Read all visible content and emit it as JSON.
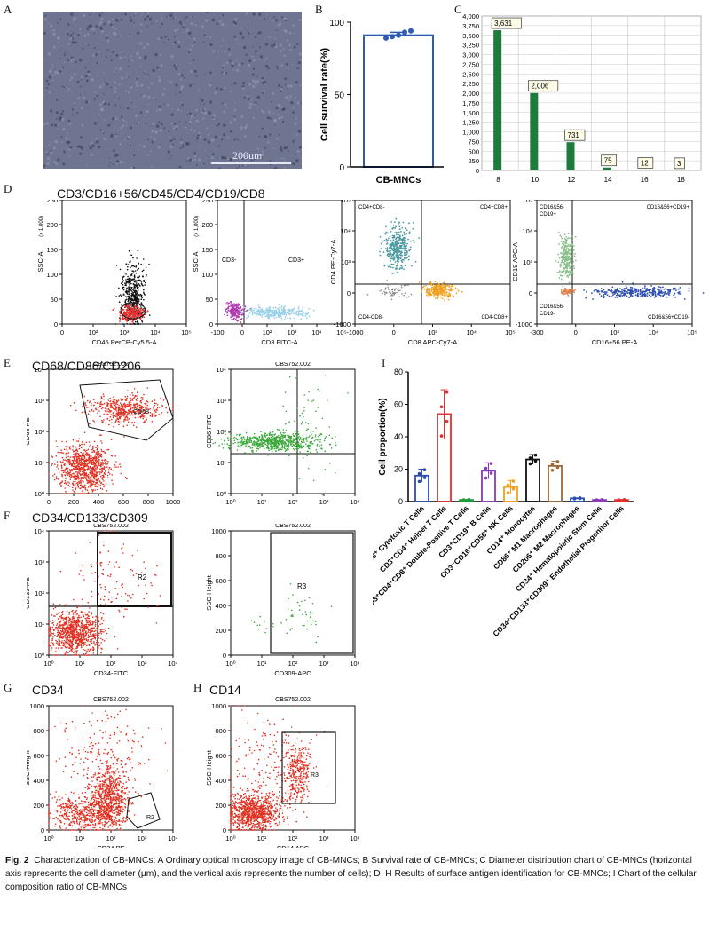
{
  "panel_letters": {
    "A": "A",
    "B": "B",
    "C": "C",
    "D": "D",
    "E": "E",
    "F": "F",
    "G": "G",
    "H": "H",
    "I": "I"
  },
  "panel_titles": {
    "D": "CD3/CD16+56/CD45/CD4/CD19/CD8",
    "E": "CD68/CD86/CD206",
    "F": "CD34/CD133/CD309",
    "G": "CD34",
    "H": "CD14"
  },
  "micro": {
    "scalebar": "200um",
    "color": "#6f7590"
  },
  "sample_id": "CBS752.002",
  "chart_data": [
    {
      "panel": "B",
      "type": "bar",
      "categories": [
        "CB-MNCs"
      ],
      "values": [
        91
      ],
      "error": [
        2
      ],
      "points": [
        89,
        90,
        91,
        93,
        94
      ],
      "ylabel": "Cell survival rate(%)",
      "ylim": [
        0,
        100
      ],
      "yticks": [
        0,
        50,
        100
      ],
      "color": "#2f5bb5"
    },
    {
      "panel": "C",
      "type": "bar",
      "categories": [
        8,
        10,
        12,
        14,
        16,
        18
      ],
      "values": [
        3631,
        2006,
        731,
        75,
        12,
        3
      ],
      "labels": [
        "3,631",
        "2,006",
        "731",
        "75",
        "12",
        "3"
      ],
      "ylim": [
        0,
        4000
      ],
      "yticks": [
        "0",
        "250",
        "500",
        "750",
        "1,000",
        "1,250",
        "1,500",
        "1,750",
        "2,000",
        "2,250",
        "2,500",
        "2,750",
        "3,000",
        "3,250",
        "3,500",
        "3,750",
        "4,000"
      ],
      "grid": true,
      "color": "#1e7b3c"
    },
    {
      "panel": "I",
      "type": "bar",
      "categories": [
        "CD3⁺CD8⁺ Cytotoxic T Cells",
        "CD3⁺CD4⁺ Helper T Cells",
        "CD3⁺CD4⁺CD8⁺ Double-Positive T Cells",
        "CD3⁺CD19⁺ B Cells",
        "CD3⁻CD16⁺CD56⁺ NK Cells",
        "CD14⁺ Monocytes",
        "CD86⁺ M1 Macrophages",
        "CD206⁺ M2 Macrophages",
        "CD34⁺ Hematopoietic Stem Cells",
        "CD34⁺CD133⁺CD309⁺ Endothelial Progenitor Cells"
      ],
      "values": [
        16,
        54,
        1,
        19,
        9,
        26,
        22,
        2,
        1,
        1
      ],
      "error": [
        4,
        15,
        0.3,
        5,
        4,
        3,
        3,
        0.3,
        0.2,
        0.2
      ],
      "colors": [
        "#2a4db0",
        "#e03030",
        "#1f9a3a",
        "#8a3bb5",
        "#f0a020",
        "#111111",
        "#9a6a3a",
        "#2a4db0",
        "#8a3bb5",
        "#e03030"
      ],
      "ylabel": "Cell proportion(%)",
      "ylim": [
        0,
        80
      ],
      "yticks": [
        0,
        20,
        40,
        60,
        80
      ]
    }
  ],
  "flow_D": {
    "p1": {
      "xlabel": "CD45 PerCP-Cy5.5-A",
      "ylabel": "SSC-A",
      "yunit": "(x 1,000)",
      "yticks": [
        "0",
        "50",
        "100",
        "150",
        "200",
        "250"
      ],
      "xticks": [
        "0",
        "10²",
        "10³",
        "10⁴",
        "10⁵"
      ]
    },
    "p2": {
      "xlabel": "CD3 FITC-A",
      "ylabel": "SSC-A",
      "yunit": "(x 1,000)",
      "yticks": [
        "0",
        "50",
        "100",
        "150",
        "200",
        "250"
      ],
      "xticks": [
        "-100",
        "0",
        "10²",
        "10³",
        "10⁴",
        "10⁵"
      ],
      "q_left": "CD3-",
      "q_right": "CD3+"
    },
    "p3": {
      "xlabel": "CD8 APC-Cy7-A",
      "ylabel": "CD4 PE-Cy7-A",
      "xticks": [
        "-1000",
        "0",
        "10³",
        "10⁴",
        "10⁵"
      ],
      "yticks": [
        "-1000",
        "0",
        "10³",
        "10⁴",
        "10⁵"
      ],
      "q": [
        "CD4+CD8-",
        "CD4+CD8+",
        "CD4-CD8-",
        "CD4-CD8+"
      ]
    },
    "p4": {
      "xlabel": "CD16+56 PE-A",
      "ylabel": "CD19 APC-A",
      "xticks": [
        "-300",
        "0",
        "10³",
        "10⁴",
        "10⁵"
      ],
      "yticks": [
        "-1000",
        "0",
        "10³",
        "10⁴",
        "10⁵"
      ],
      "q": [
        "CD16&56-\nCD19+",
        "CD16&56+CD19+",
        "CD16&56-\nCD19-",
        "CD16&56+CD19-"
      ]
    }
  },
  "flow_E": {
    "p1": {
      "xlabel": "SSC-Height",
      "ylabel": "CD68 PE",
      "gate": "CD68",
      "xticks": [
        "0",
        "200",
        "400",
        "600",
        "800",
        "1000"
      ],
      "yticks": [
        "10⁰",
        "10¹",
        "10²",
        "10³",
        "10⁴"
      ]
    },
    "p2": {
      "xlabel": "CD206 PerCP-Cy5.5",
      "ylabel": "CD86 FITC",
      "xticks": [
        "10⁰",
        "10¹",
        "10²",
        "10³",
        "10⁴"
      ],
      "yticks": [
        "10⁰",
        "10¹",
        "10²",
        "10³",
        "10⁴"
      ]
    }
  },
  "flow_F": {
    "p1": {
      "xlabel": "CD34-FITC",
      "ylabel": "CD133-PE",
      "gate": "R2",
      "xticks": [
        "10⁰",
        "10¹",
        "10²",
        "10³",
        "10⁴"
      ],
      "yticks": [
        "10⁰",
        "10¹",
        "10²",
        "10³",
        "10⁴"
      ]
    },
    "p2": {
      "xlabel": "CD309-APC",
      "ylabel": "SSC-Height",
      "gate": "R3",
      "xticks": [
        "10⁰",
        "10¹",
        "10²",
        "10³",
        "10⁴"
      ],
      "yticks": [
        "0",
        "200",
        "400",
        "600",
        "800",
        "1000"
      ]
    }
  },
  "flow_G": {
    "xlabel": "CD34 PE",
    "ylabel": "SSC-Height",
    "gate": "R2",
    "xticks": [
      "10⁰",
      "10¹",
      "10²",
      "10³",
      "10⁴"
    ],
    "yticks": [
      "0",
      "200",
      "400",
      "600",
      "800",
      "1000"
    ]
  },
  "flow_H": {
    "xlabel": "CD14 APC",
    "ylabel": "SSC-Height",
    "gate": "R3",
    "xticks": [
      "10⁰",
      "10¹",
      "10²",
      "10³",
      "10⁴"
    ],
    "yticks": [
      "0",
      "200",
      "400",
      "600",
      "800",
      "1000"
    ]
  },
  "caption": {
    "figno": "Fig. 2",
    "text": "Characterization of CB-MNCs: A Ordinary optical microscopy image of CB-MNCs; B Survival rate of CB-MNCs; C Diameter distribution chart of CB-MNCs (horizontal axis represents the cell diameter (μm), and the vertical axis represents the number of cells); D–H Results of surface antigen identification for CB-MNCs; I Chart of the cellular composition ratio of CB-MNCs"
  }
}
